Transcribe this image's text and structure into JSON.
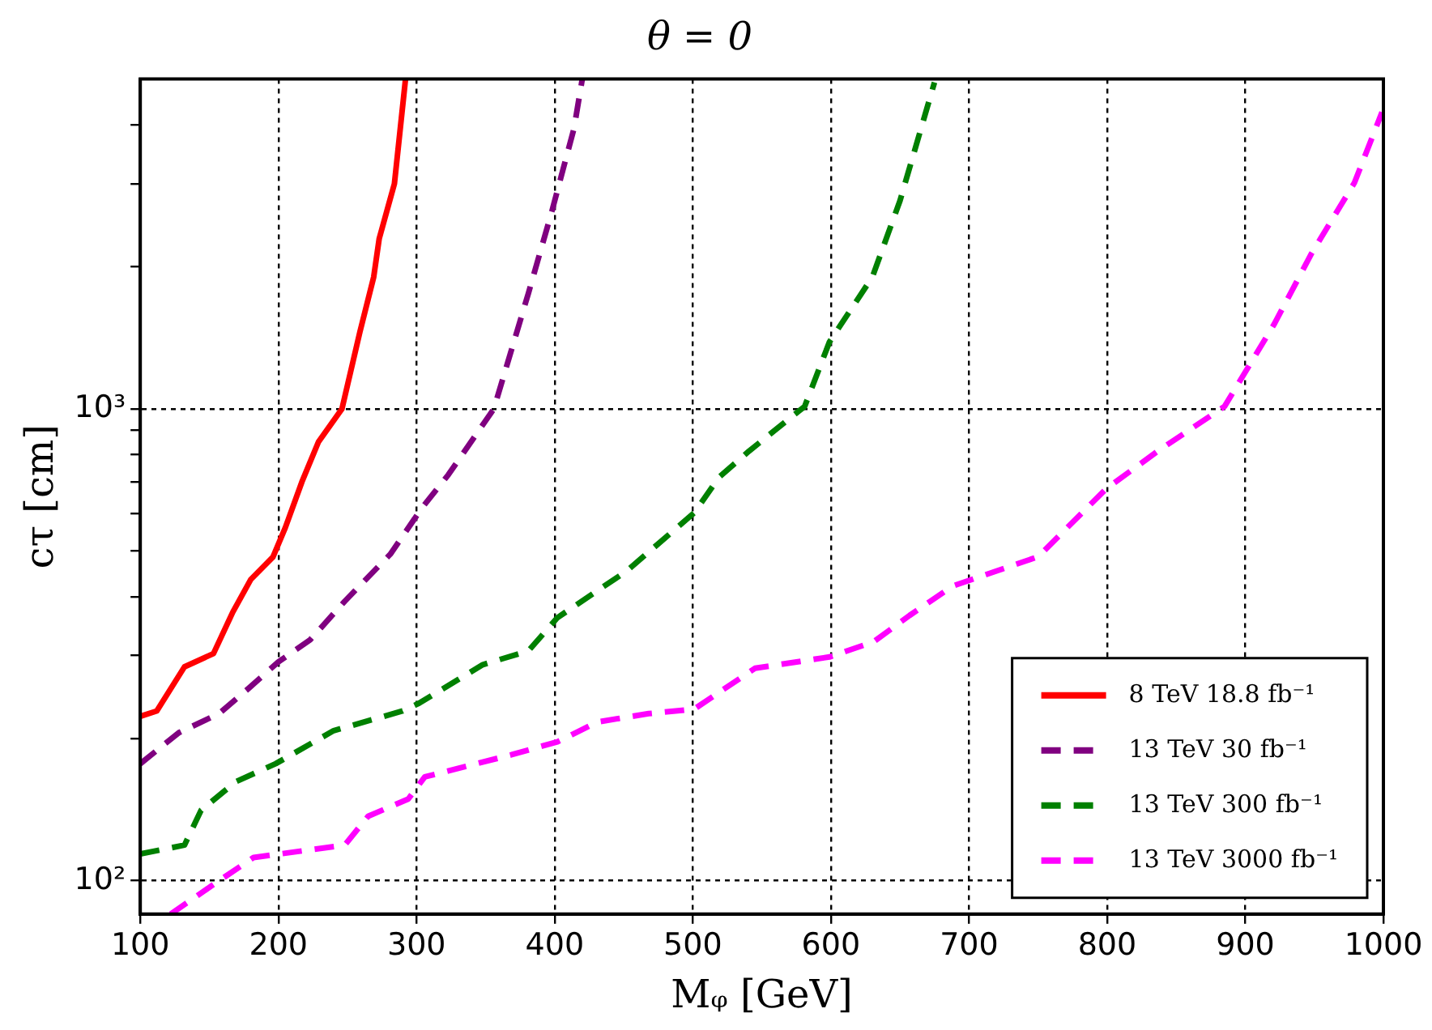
{
  "chart_data": {
    "type": "line",
    "title": "θ = 0",
    "xlabel": "Mᵩ [GeV]",
    "ylabel": "cτ [cm]",
    "log": "y",
    "grid": true,
    "legend": "bottom right",
    "marker": "none",
    "xlim": [
      100,
      1000
    ],
    "xticks": [
      100,
      200,
      300,
      400,
      500,
      600,
      700,
      800,
      900,
      1000
    ],
    "ylim": [
      85,
      5000
    ],
    "yticks": [
      {
        "value": 100,
        "label": "10²"
      },
      {
        "value": 200,
        "label": null
      },
      {
        "value": 300,
        "label": null
      },
      {
        "value": 400,
        "label": null
      },
      {
        "value": 500,
        "label": null
      },
      {
        "value": 600,
        "label": null
      },
      {
        "value": 700,
        "label": null
      },
      {
        "value": 800,
        "label": null
      },
      {
        "value": 900,
        "label": null
      },
      {
        "value": 1000,
        "label": "10³"
      },
      {
        "value": 2000,
        "label": null
      },
      {
        "value": 3000,
        "label": null
      },
      {
        "value": 4000,
        "label": null
      }
    ],
    "series": [
      {
        "name": "8 TeV 18.8 fb⁻¹",
        "color": "#ff0000",
        "line_style": "solid",
        "x": [
          100,
          112,
          132,
          153,
          167,
          180,
          196,
          205,
          217,
          229,
          246,
          259,
          269,
          273,
          284,
          292
        ],
        "values": [
          223,
          229,
          284,
          303,
          371,
          435,
          485,
          560,
          700,
          851,
          1000,
          1455,
          1903,
          2296,
          3000,
          4990
        ]
      },
      {
        "name": "13 TeV 30 fb⁻¹",
        "color": "#800080",
        "line_style": "dashed",
        "x": [
          100,
          128,
          157,
          178,
          200,
          223,
          248,
          281,
          304,
          323,
          356,
          381,
          398,
          414,
          420
        ],
        "values": [
          177,
          206,
          226,
          255,
          291,
          324,
          391,
          492,
          617,
          725,
          1000,
          1758,
          2623,
          3928,
          5000
        ]
      },
      {
        "name": "13 TeV 300 fb⁻¹",
        "color": "#008000",
        "line_style": "dashed",
        "x": [
          100,
          132,
          144,
          169,
          198,
          240,
          290,
          302,
          348,
          381,
          402,
          452,
          501,
          519,
          541,
          581,
          599,
          630,
          650,
          675
        ],
        "values": [
          114,
          119,
          141,
          162,
          177,
          208,
          229,
          238,
          287,
          307,
          361,
          453,
          602,
          716,
          815,
          1012,
          1387,
          1902,
          2760,
          4920
        ]
      },
      {
        "name": "13 TeV 3000 fb⁻¹",
        "color": "#ff00ff",
        "line_style": "dashed",
        "x": [
          122,
          157,
          182,
          248,
          265,
          294,
          306,
          369,
          402,
          431,
          468,
          501,
          545,
          599,
          631,
          657,
          688,
          750,
          799,
          837,
          885,
          921,
          948,
          979,
          999
        ],
        "values": [
          85,
          100,
          112,
          119,
          137,
          149,
          166,
          185,
          197,
          217,
          226,
          231,
          282,
          298,
          321,
          365,
          421,
          486,
          676,
          815,
          1012,
          1513,
          2135,
          3013,
          4254
        ]
      }
    ]
  }
}
